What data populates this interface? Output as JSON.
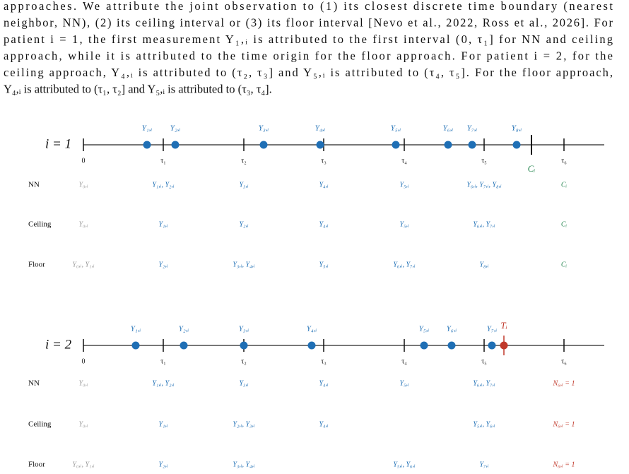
{
  "paragraph": [
    "approaches. We attribute the joint observation to (1) its closest discrete time boundary (nearest",
    "neighbor, NN), (2) its ceiling interval or (3) its floor interval [Nevo et al., 2022, Ross et al., 2026]. For",
    "patient i = 1, the first measurement Y₁,ᵢ is attributed to the first interval (0, τ₁] for NN and ceiling",
    "approach, while it is attributed to the time origin for the floor approach. For patient i = 2, for the",
    "ceiling approach, Y₄,ᵢ is attributed to (τ₂, τ₃] and Y₅,ᵢ is attributed to (τ₄, τ₅]. For the floor approach,",
    "Y₄,ᵢ is attributed to (τ₁, τ₂] and Y₅,ᵢ is attributed to (τ₃, τ₄]."
  ],
  "panels": [
    {
      "label": "i = 1",
      "axis_ticks": [
        "0",
        "τ₁",
        "τ₂",
        "τ₃",
        "τ₄",
        "τ₅",
        "τ₆"
      ],
      "points": [
        "Y₁,ᵢ",
        "Y₂,ᵢ",
        "Y₃,ᵢ",
        "Y₄,ᵢ",
        "Y₅,ᵢ",
        "Y₆,ᵢ",
        "Y₇,ᵢ",
        "Y₈,ᵢ"
      ],
      "event": "Cᵢ",
      "rows": [
        {
          "name": "NN",
          "cells": [
            "Y₀,ᵢ",
            "Y₁,ᵢ, Y₂,ᵢ",
            "Y₃,ᵢ",
            "Y₄,ᵢ",
            "Y₅,ᵢ",
            "Y₆,ᵢ, Y₇,ᵢ, Y₈,ᵢ",
            "Cᵢ"
          ]
        },
        {
          "name": "Ceiling",
          "cells": [
            "Y₀,ᵢ",
            "Y₁,ᵢ",
            "Y₂,ᵢ",
            "Y₄,ᵢ",
            "Y₅,ᵢ",
            "Y₆,ᵢ, Y₇,ᵢ",
            "Cᵢ"
          ]
        },
        {
          "name": "Floor",
          "cells": [
            "Y₀,ᵢ, Y₁,ᵢ",
            "Y₂,ᵢ",
            "Y₃,ᵢ, Y₄,ᵢ",
            "Y₅,ᵢ",
            "Y₆,ᵢ, Y₇,ᵢ",
            "Y₈,ᵢ",
            "Cᵢ"
          ]
        }
      ]
    },
    {
      "label": "i = 2",
      "axis_ticks": [
        "0",
        "τ₁",
        "τ₂",
        "τ₃",
        "τ₄",
        "τ₅",
        "τ₆"
      ],
      "points": [
        "Y₁,ᵢ",
        "Y₂,ᵢ",
        "Y₃,ᵢ",
        "Y₄,ᵢ",
        "Y₅,ᵢ",
        "Y₆,ᵢ",
        "Y₇,ᵢ"
      ],
      "event": "Tᵢ",
      "rows": [
        {
          "name": "NN",
          "cells": [
            "Y₀,ᵢ",
            "Y₁,ᵢ, Y₂,ᵢ",
            "Y₃,ᵢ",
            "Y₄,ᵢ",
            "Y₅,ᵢ",
            "Y₆,ᵢ, Y₇,ᵢ",
            "N₆,ᵢ = 1"
          ]
        },
        {
          "name": "Ceiling",
          "cells": [
            "Y₀,ᵢ",
            "Y₁,ᵢ",
            "Y₂,ᵢ, Y₃,ᵢ",
            "Y₄,ᵢ",
            null,
            "Y₅,ᵢ, Y₆,ᵢ",
            "N₆,ᵢ = 1"
          ]
        },
        {
          "name": "Floor",
          "cells": [
            "Y₀,ᵢ, Y₁,ᵢ",
            "Y₂,ᵢ",
            "Y₃,ᵢ, Y₄,ᵢ",
            null,
            "Y₅,ᵢ, Y₆,ᵢ",
            "Y₇,ᵢ",
            "N₆,ᵢ = 1"
          ]
        }
      ]
    }
  ]
}
